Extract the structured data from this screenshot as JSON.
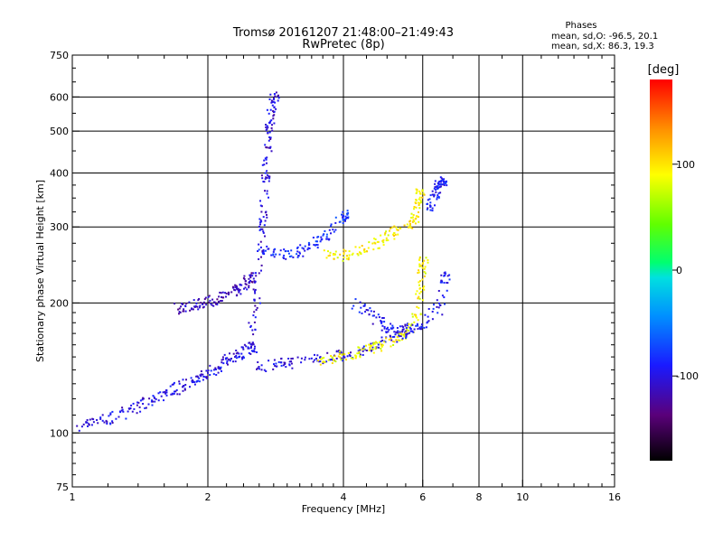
{
  "chart_data": {
    "type": "scatter",
    "title": "Tromsø 20161207 21:48:00–21:49:43",
    "subtitle": "RwPretec (8p)",
    "xlabel": "Frequency [MHz]",
    "ylabel": "Stationary phase Virtual Height [km]",
    "xscale": "log",
    "yscale": "log",
    "xlim": [
      1,
      16
    ],
    "ylim": [
      75,
      750
    ],
    "x_ticks": [
      "1",
      "2",
      "4",
      "6",
      "8",
      "10",
      "16"
    ],
    "y_ticks": [
      "75",
      "100",
      "200",
      "300",
      "400",
      "500",
      "600",
      "750"
    ],
    "grid": true,
    "stats": {
      "heading": "Phases",
      "line_o": "mean, sd,O: -96.5, 20.1",
      "line_x": "mean, sd,X: 86.3, 19.3"
    },
    "colorbar": {
      "label": "[deg]",
      "range": [
        -180,
        180
      ],
      "ticks": [
        "100",
        "0",
        "-100"
      ],
      "tick_values": [
        100,
        0,
        -100
      ]
    },
    "traces": [
      {
        "name": "",
        "phase": -100,
        "x": [
          1.0,
          1.1,
          1.2,
          1.3,
          1.4,
          1.5,
          1.6,
          1.7,
          1.8,
          1.9,
          2.0,
          2.1,
          2.2,
          2.3,
          2.4,
          2.5
        ],
        "y": [
          103,
          106,
          108,
          112,
          116,
          120,
          124,
          127,
          131,
          135,
          139,
          143,
          148,
          152,
          155,
          158
        ]
      },
      {
        "name": "",
        "phase": -115,
        "x": [
          1.7,
          1.8,
          1.9,
          2.0,
          2.1,
          2.2,
          2.3,
          2.4,
          2.5
        ],
        "y": [
          195,
          197,
          200,
          202,
          205,
          210,
          215,
          222,
          230
        ]
      },
      {
        "name": "",
        "phase": -105,
        "x": [
          2.5,
          2.55,
          2.6,
          2.62,
          2.65,
          2.68,
          2.7,
          2.72,
          2.75,
          2.8
        ],
        "y": [
          170,
          200,
          250,
          300,
          350,
          400,
          450,
          500,
          550,
          600
        ]
      },
      {
        "name": "",
        "phase": -85,
        "x": [
          2.6,
          2.8,
          3.0,
          3.2,
          3.4,
          3.6,
          3.8,
          4.0
        ],
        "y": [
          270,
          262,
          260,
          265,
          272,
          285,
          300,
          320
        ]
      },
      {
        "name": "",
        "phase": -100,
        "x": [
          2.5,
          2.8,
          3.0,
          3.3,
          3.6,
          3.9,
          4.2,
          4.6,
          5.0,
          5.5
        ],
        "y": [
          142,
          144,
          146,
          147,
          150,
          152,
          155,
          158,
          165,
          175
        ]
      },
      {
        "name": "",
        "phase": 90,
        "x": [
          3.5,
          3.8,
          4.1,
          4.4,
          4.7,
          5.0,
          5.3,
          5.6,
          5.8,
          5.9,
          6.0
        ],
        "y": [
          148,
          150,
          152,
          155,
          158,
          163,
          168,
          175,
          190,
          220,
          250
        ]
      },
      {
        "name": "",
        "phase": 95,
        "x": [
          3.6,
          3.9,
          4.2,
          4.5,
          4.8,
          5.1,
          5.4,
          5.7,
          5.8,
          5.9
        ],
        "y": [
          260,
          258,
          262,
          270,
          280,
          290,
          300,
          310,
          330,
          360
        ]
      },
      {
        "name": "",
        "phase": -95,
        "x": [
          4.2,
          4.5,
          4.8,
          5.0,
          5.3,
          5.6,
          6.0,
          6.5,
          6.7
        ],
        "y": [
          200,
          193,
          182,
          175,
          170,
          172,
          180,
          195,
          230
        ]
      },
      {
        "name": "",
        "phase": -90,
        "x": [
          6.2,
          6.3,
          6.4,
          6.5,
          6.6
        ],
        "y": [
          330,
          350,
          365,
          375,
          385
        ]
      }
    ]
  }
}
